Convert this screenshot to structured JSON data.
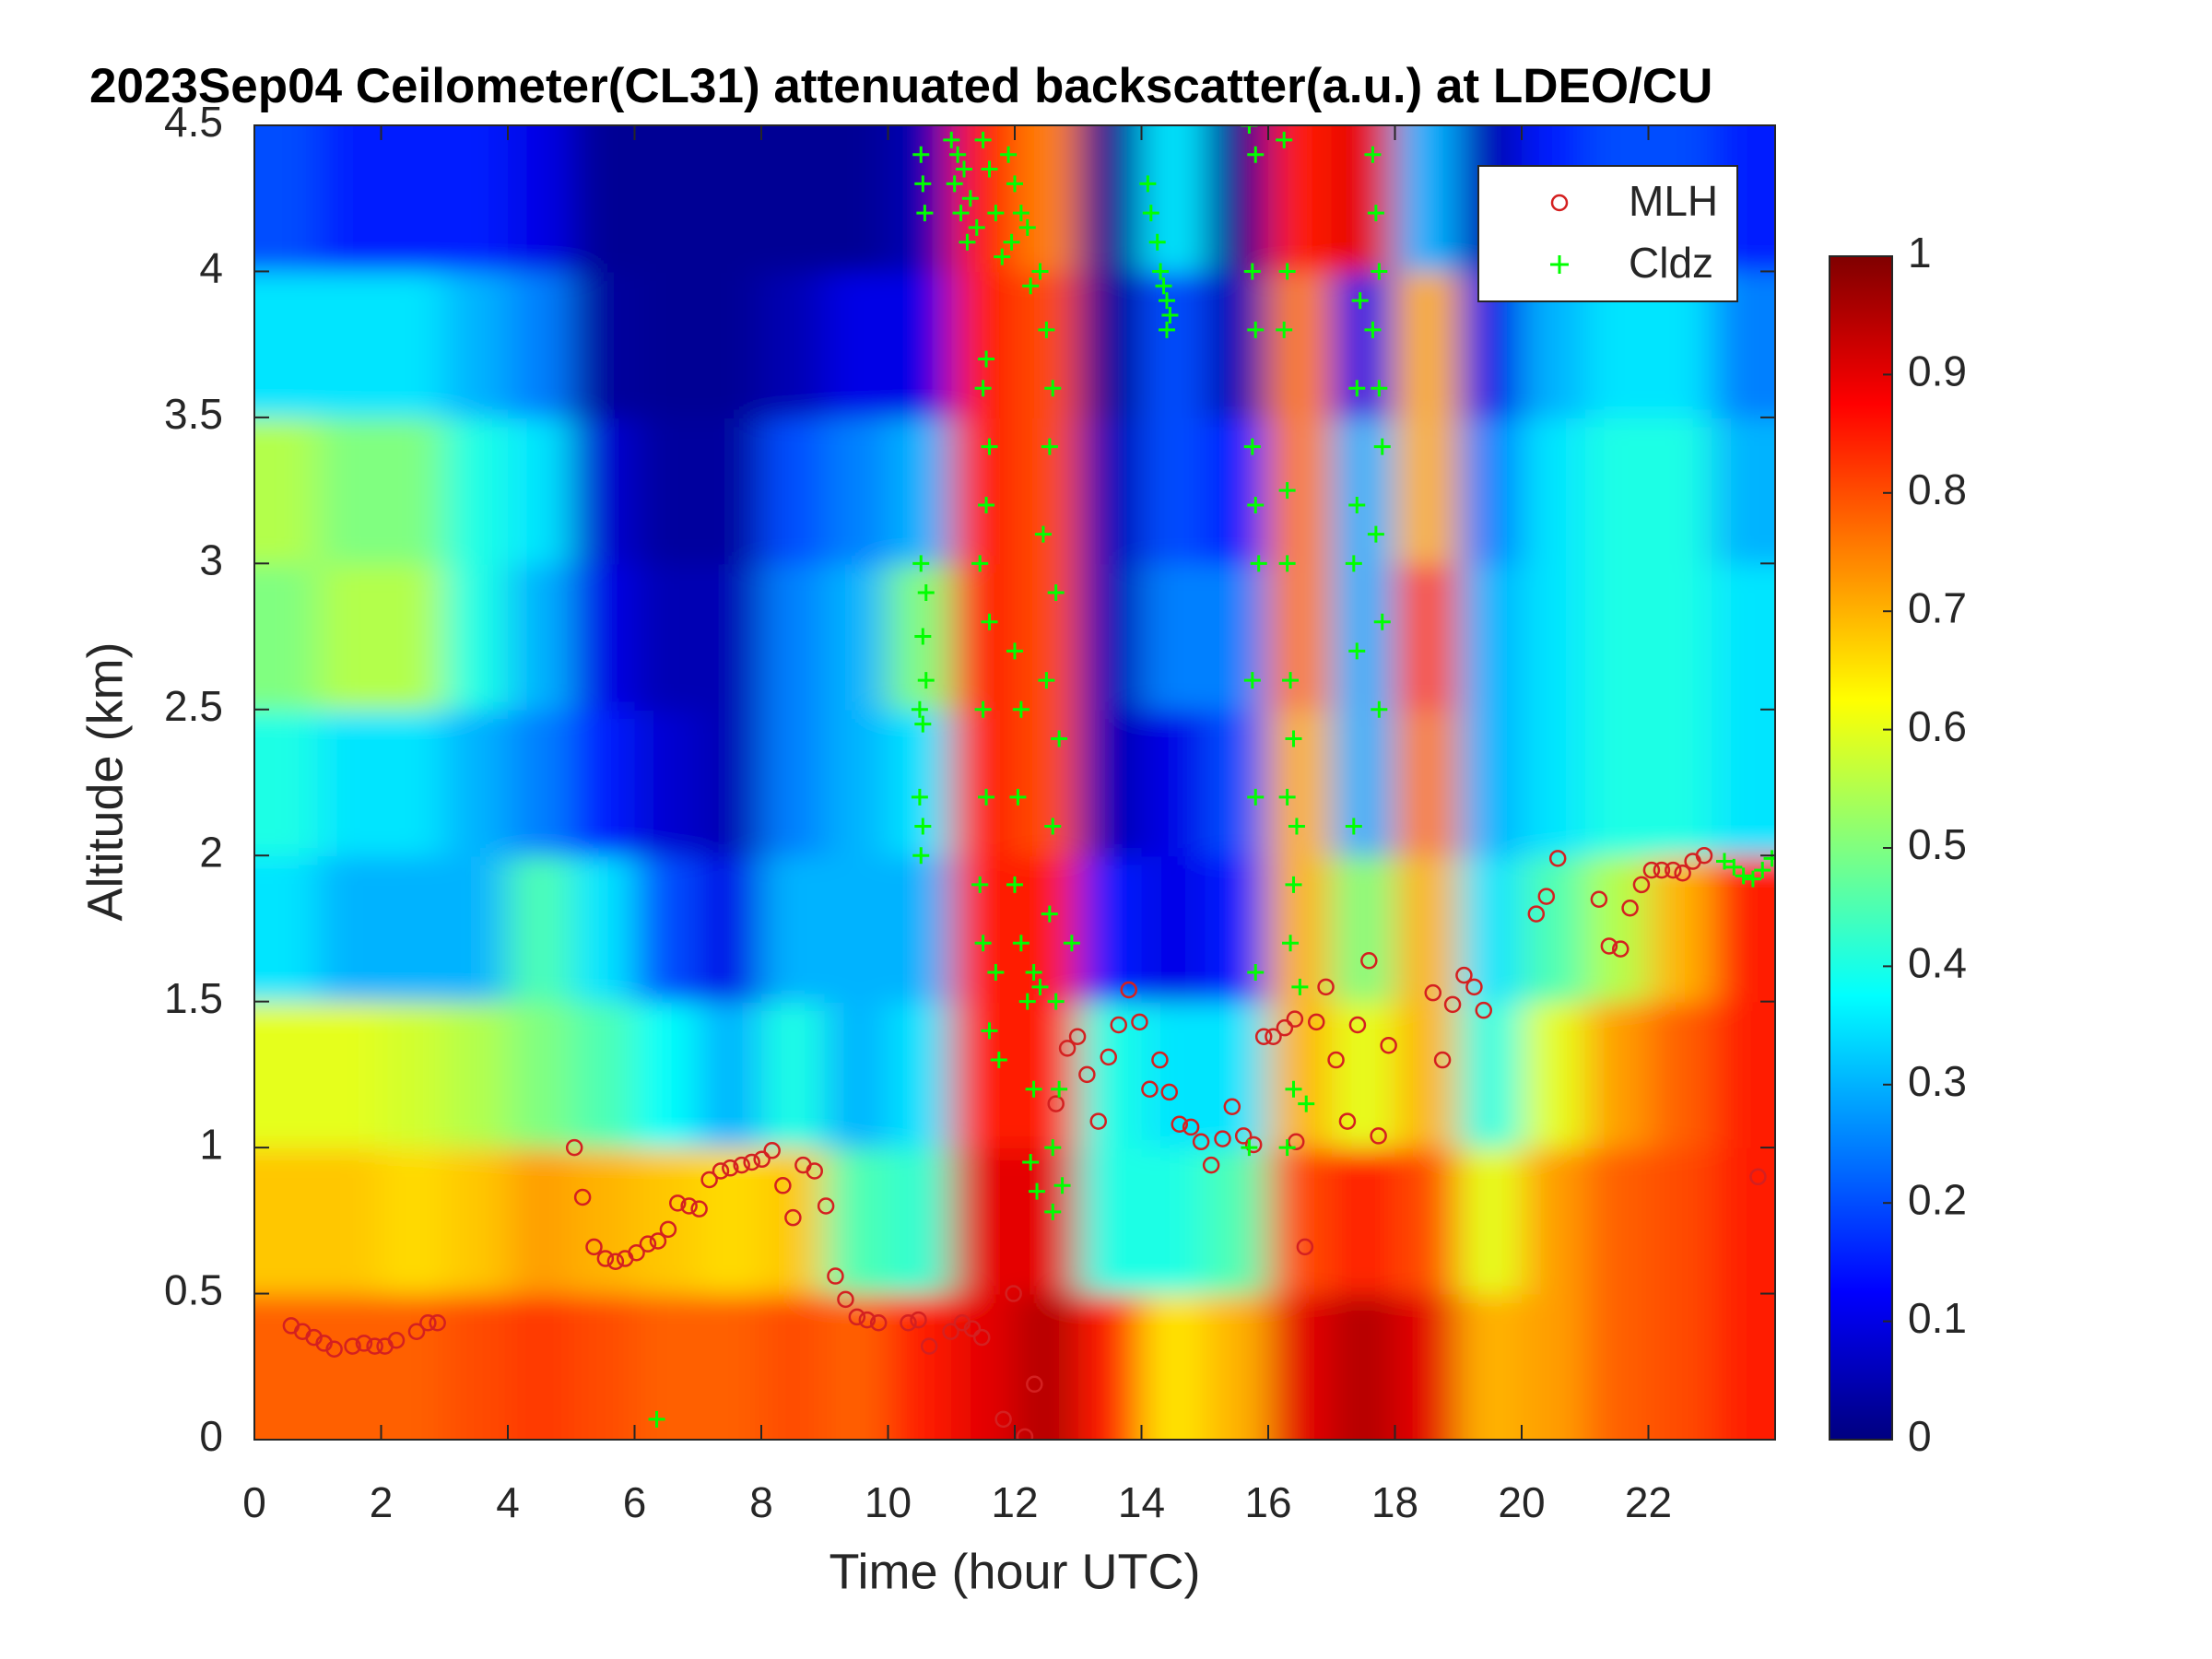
{
  "chart_data": {
    "type": "heatmap",
    "title": "2023Sep04 Ceilometer(CL31) attenuated backscatter(a.u.) at LDEO/CU",
    "x_label": "Time (hour UTC)",
    "y_label": "Altitude (km)",
    "xlim": [
      0,
      24
    ],
    "xticks": [
      0,
      2,
      4,
      6,
      8,
      10,
      12,
      14,
      16,
      18,
      20,
      22
    ],
    "ylim": [
      0,
      4.5
    ],
    "yticks": [
      0,
      0.5,
      1,
      1.5,
      2,
      2.5,
      3,
      3.5,
      4,
      4.5
    ],
    "colormap": "jet",
    "clim": [
      0,
      1
    ],
    "cticks": [
      0,
      0.1,
      0.2,
      0.3,
      0.4,
      0.5,
      0.6,
      0.7,
      0.8,
      0.9,
      1
    ],
    "legend": "upper right",
    "heatmap": {
      "x": [
        0.5,
        1.5,
        2.5,
        3.5,
        4.5,
        5.5,
        6.5,
        7.5,
        8.5,
        9.5,
        10.5,
        11.5,
        12.5,
        13.5,
        14.5,
        15.5,
        16.5,
        17.5,
        18.5,
        19.5,
        20.5,
        21.5,
        22.5,
        23.5
      ],
      "y": [
        0.25,
        0.75,
        1.25,
        1.75,
        2.25,
        2.75,
        3.25,
        3.75,
        4.25
      ],
      "z": [
        [
          0.78,
          0.78,
          0.78,
          0.8,
          0.82,
          0.8,
          0.78,
          0.78,
          0.8,
          0.78,
          0.85,
          0.9,
          0.95,
          0.85,
          0.65,
          0.7,
          0.9,
          0.95,
          0.9,
          0.7,
          0.72,
          0.78,
          0.8,
          0.85
        ],
        [
          0.68,
          0.68,
          0.66,
          0.68,
          0.72,
          0.7,
          0.68,
          0.66,
          0.68,
          0.45,
          0.42,
          0.9,
          0.9,
          0.4,
          0.4,
          0.45,
          0.8,
          0.85,
          0.8,
          0.6,
          0.72,
          0.78,
          0.8,
          0.85
        ],
        [
          0.6,
          0.6,
          0.58,
          0.55,
          0.5,
          0.45,
          0.38,
          0.3,
          0.4,
          0.3,
          0.35,
          0.85,
          0.85,
          0.4,
          0.35,
          0.35,
          0.7,
          0.6,
          0.7,
          0.4,
          0.6,
          0.72,
          0.78,
          0.85
        ],
        [
          0.35,
          0.3,
          0.3,
          0.3,
          0.45,
          0.35,
          0.2,
          0.1,
          0.3,
          0.3,
          0.3,
          0.85,
          0.85,
          0.15,
          0.1,
          0.15,
          0.7,
          0.5,
          0.7,
          0.35,
          0.45,
          0.55,
          0.7,
          0.85
        ],
        [
          0.4,
          0.35,
          0.35,
          0.3,
          0.25,
          0.15,
          0.08,
          0.05,
          0.25,
          0.3,
          0.35,
          0.85,
          0.8,
          0.05,
          0.1,
          0.2,
          0.7,
          0.3,
          0.75,
          0.3,
          0.35,
          0.4,
          0.4,
          0.35
        ],
        [
          0.5,
          0.55,
          0.55,
          0.4,
          0.3,
          0.1,
          0.05,
          0.05,
          0.25,
          0.3,
          0.5,
          0.85,
          0.8,
          0.05,
          0.25,
          0.25,
          0.75,
          0.3,
          0.8,
          0.3,
          0.35,
          0.4,
          0.4,
          0.35
        ],
        [
          0.55,
          0.5,
          0.5,
          0.4,
          0.35,
          0.08,
          0.03,
          0.03,
          0.2,
          0.25,
          0.3,
          0.85,
          0.8,
          0.05,
          0.2,
          0.15,
          0.75,
          0.3,
          0.7,
          0.25,
          0.35,
          0.4,
          0.4,
          0.3
        ],
        [
          0.35,
          0.35,
          0.35,
          0.3,
          0.25,
          0.03,
          0.02,
          0.02,
          0.05,
          0.1,
          0.1,
          0.85,
          0.8,
          0.02,
          0.2,
          0.05,
          0.75,
          0.1,
          0.7,
          0.1,
          0.3,
          0.35,
          0.35,
          0.25
        ],
        [
          0.2,
          0.15,
          0.15,
          0.15,
          0.1,
          0.02,
          0.02,
          0.02,
          0.02,
          0.02,
          0.05,
          0.85,
          0.75,
          0.02,
          0.35,
          0.02,
          0.85,
          0.9,
          0.3,
          0.05,
          0.15,
          0.2,
          0.2,
          0.15
        ]
      ]
    },
    "series": [
      {
        "name": "MLH",
        "color": "#d42020",
        "marker": "o",
        "x": [
          0.58,
          0.76,
          0.94,
          1.1,
          1.26,
          1.55,
          1.73,
          1.9,
          2.06,
          2.24,
          2.56,
          2.74,
          2.89,
          5.05,
          5.18,
          5.36,
          5.54,
          5.7,
          5.85,
          6.03,
          6.21,
          6.37,
          6.53,
          6.68,
          6.86,
          7.02,
          7.18,
          7.36,
          7.51,
          7.69,
          7.85,
          8.01,
          8.17,
          8.34,
          8.5,
          8.66,
          8.84,
          9.02,
          9.17,
          9.33,
          9.51,
          9.67,
          9.85,
          10.32,
          10.48,
          10.65,
          10.99,
          11.17,
          11.33,
          11.48,
          11.82,
          11.98,
          12.16,
          12.31,
          12.65,
          12.83,
          12.99,
          13.14,
          13.32,
          13.48,
          13.64,
          13.8,
          13.97,
          14.13,
          14.29,
          14.44,
          14.6,
          14.78,
          14.94,
          15.1,
          15.28,
          15.43,
          15.61,
          15.77,
          15.93,
          16.08,
          16.26,
          16.42,
          16.44,
          16.58,
          16.76,
          16.91,
          17.07,
          17.25,
          17.41,
          17.59,
          17.74,
          17.9,
          18.6,
          18.75,
          18.91,
          19.09,
          19.25,
          19.4,
          20.23,
          20.39,
          20.57,
          21.22,
          21.38,
          21.56,
          21.71,
          21.89,
          22.05,
          22.21,
          22.39,
          22.54,
          22.7,
          22.88,
          23.73
        ],
        "y": [
          0.39,
          0.37,
          0.35,
          0.33,
          0.31,
          0.32,
          0.33,
          0.32,
          0.32,
          0.34,
          0.37,
          0.4,
          0.4,
          1.0,
          0.83,
          0.66,
          0.62,
          0.61,
          0.62,
          0.64,
          0.67,
          0.68,
          0.72,
          0.81,
          0.8,
          0.79,
          0.89,
          0.92,
          0.93,
          0.94,
          0.95,
          0.96,
          0.99,
          0.87,
          0.76,
          0.94,
          0.92,
          0.8,
          0.56,
          0.48,
          0.42,
          0.41,
          0.4,
          0.4,
          0.41,
          0.32,
          0.37,
          0.4,
          0.38,
          0.35,
          0.07,
          0.5,
          0.01,
          0.19,
          1.15,
          1.34,
          1.38,
          1.25,
          1.09,
          1.31,
          1.42,
          1.54,
          1.43,
          1.2,
          1.3,
          1.19,
          1.08,
          1.07,
          1.02,
          0.94,
          1.03,
          1.14,
          1.04,
          1.01,
          1.38,
          1.38,
          1.41,
          1.44,
          1.02,
          0.66,
          1.43,
          1.55,
          1.3,
          1.09,
          1.42,
          1.64,
          1.04,
          1.35,
          1.53,
          1.3,
          1.49,
          1.59,
          1.55,
          1.47,
          1.8,
          1.86,
          1.99,
          1.85,
          1.69,
          1.68,
          1.82,
          1.9,
          1.95,
          1.95,
          1.95,
          1.94,
          1.98,
          2.0,
          0.9
        ]
      },
      {
        "name": "Cldz",
        "color": "#00ff00",
        "marker": "+",
        "x": [
          6.35,
          10.52,
          10.55,
          10.58,
          10.52,
          10.6,
          10.55,
          10.6,
          10.5,
          10.55,
          10.5,
          10.55,
          10.52,
          11.0,
          11.1,
          11.2,
          11.05,
          11.3,
          11.15,
          11.4,
          11.25,
          11.5,
          11.6,
          11.7,
          11.8,
          11.9,
          12.0,
          12.1,
          11.95,
          12.2,
          12.25,
          11.55,
          11.5,
          11.6,
          11.55,
          11.45,
          11.6,
          11.5,
          11.55,
          11.45,
          11.5,
          11.6,
          11.7,
          11.75,
          12.0,
          12.1,
          12.05,
          12.0,
          12.1,
          12.2,
          12.3,
          12.4,
          12.3,
          12.25,
          12.35,
          12.4,
          12.5,
          12.6,
          12.55,
          12.45,
          12.65,
          12.5,
          12.7,
          12.6,
          12.55,
          12.65,
          12.7,
          12.6,
          12.75,
          12.6,
          12.9,
          14.1,
          14.15,
          14.25,
          14.3,
          14.35,
          14.4,
          14.45,
          14.4,
          15.7,
          15.8,
          15.75,
          15.8,
          15.75,
          15.8,
          15.85,
          15.75,
          15.8,
          15.7,
          15.8,
          16.25,
          16.3,
          16.25,
          16.3,
          16.3,
          16.35,
          16.4,
          16.3,
          16.45,
          16.4,
          16.35,
          16.5,
          16.4,
          16.6,
          16.3,
          17.45,
          17.4,
          17.35,
          17.4,
          17.35,
          17.4,
          17.65,
          17.7,
          17.75,
          17.65,
          17.75,
          17.8,
          17.7,
          17.8,
          17.75,
          23.2,
          23.35,
          23.5,
          23.65,
          23.8,
          23.95
        ],
        "y": [
          0.07,
          4.4,
          4.3,
          4.2,
          3.0,
          2.9,
          2.75,
          2.6,
          2.5,
          2.45,
          2.2,
          2.1,
          2.0,
          4.45,
          4.4,
          4.35,
          4.3,
          4.25,
          4.2,
          4.15,
          4.1,
          4.45,
          4.35,
          4.2,
          4.05,
          4.4,
          4.3,
          4.2,
          4.1,
          4.15,
          3.95,
          3.7,
          3.6,
          3.4,
          3.2,
          3.0,
          2.8,
          2.5,
          2.2,
          1.9,
          1.7,
          1.4,
          1.6,
          1.3,
          2.7,
          2.5,
          2.2,
          1.9,
          1.7,
          1.5,
          1.6,
          1.55,
          1.2,
          0.95,
          0.85,
          4.0,
          3.8,
          3.6,
          3.4,
          3.1,
          2.9,
          2.6,
          2.4,
          2.1,
          1.8,
          1.5,
          1.2,
          1.0,
          0.87,
          0.78,
          1.7,
          4.3,
          4.2,
          4.1,
          4.0,
          3.95,
          3.9,
          3.85,
          3.8,
          4.5,
          4.4,
          4.0,
          3.8,
          3.4,
          3.2,
          3.0,
          2.6,
          2.2,
          1.0,
          1.6,
          4.45,
          4.0,
          3.8,
          3.25,
          3.0,
          2.6,
          2.4,
          2.2,
          2.1,
          1.9,
          1.7,
          1.55,
          1.2,
          1.15,
          1.0,
          3.9,
          3.6,
          3.0,
          2.7,
          2.1,
          3.2,
          4.4,
          4.2,
          4.0,
          3.8,
          3.6,
          3.4,
          3.1,
          2.8,
          2.5,
          1.98,
          1.96,
          1.93,
          1.92,
          1.95,
          1.99
        ]
      }
    ]
  }
}
